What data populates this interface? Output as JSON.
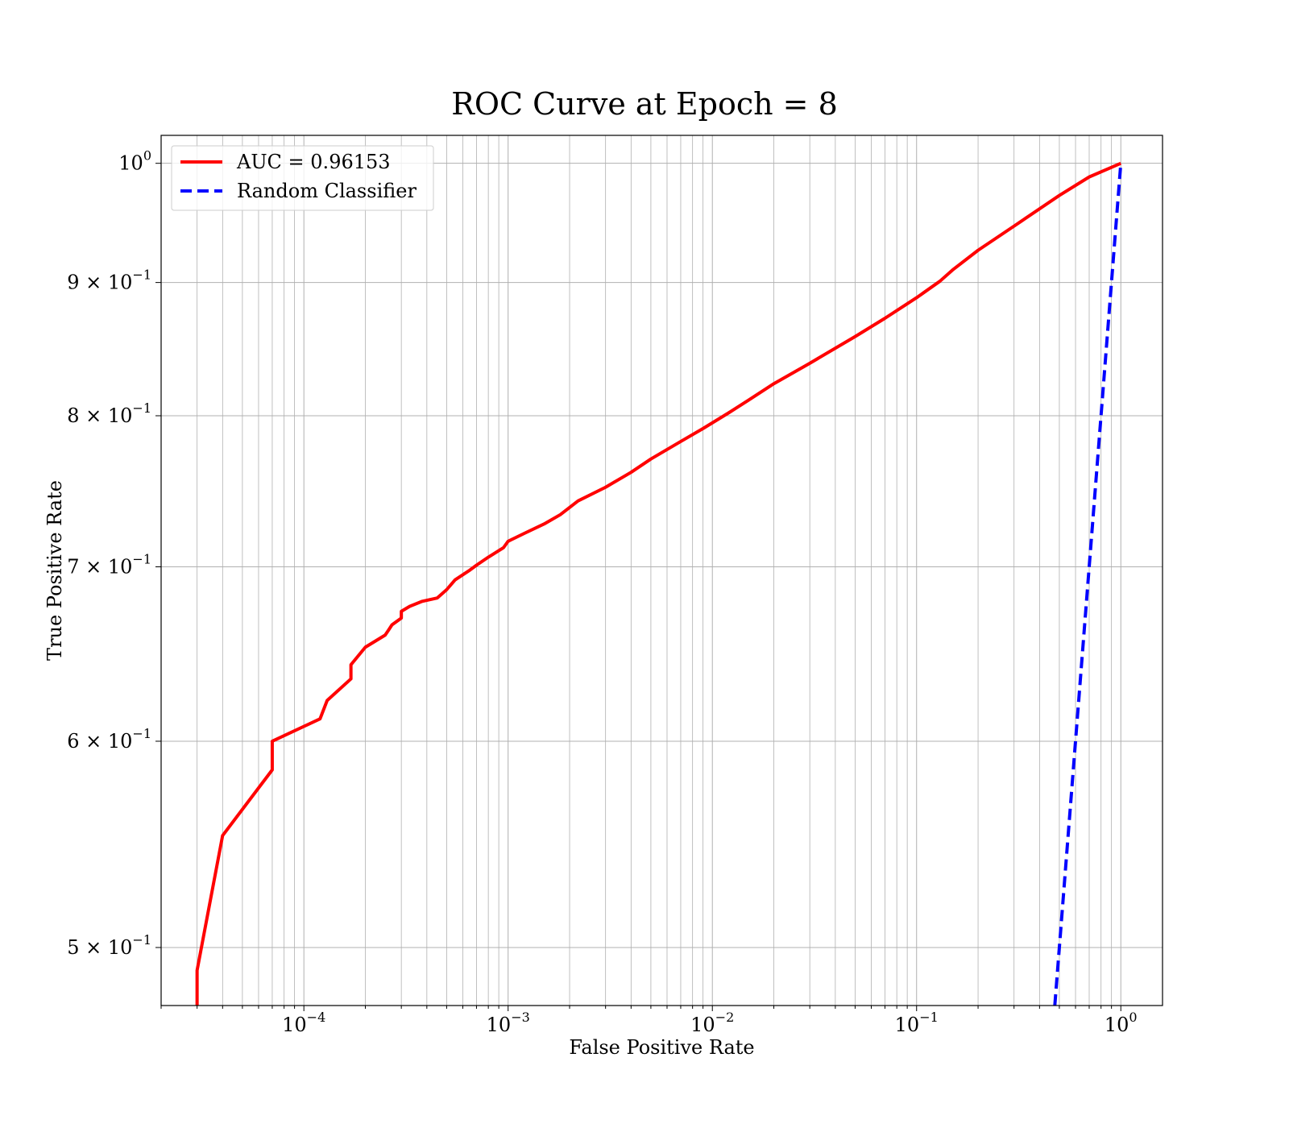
{
  "chart_data": {
    "type": "line",
    "title": "ROC Curve at Epoch = 8",
    "xlabel": "False Positive Rate",
    "ylabel": "True Positive Rate",
    "xscale": "log",
    "yscale": "log",
    "xlim": [
      2e-05,
      1.6
    ],
    "ylim": [
      0.475,
      1.025
    ],
    "grid": true,
    "grid_minor": true,
    "legend_position": "top-left",
    "x_ticks": [
      {
        "value": 0.0001,
        "base": "10",
        "exp": "−4"
      },
      {
        "value": 0.001,
        "base": "10",
        "exp": "−3"
      },
      {
        "value": 0.01,
        "base": "10",
        "exp": "−2"
      },
      {
        "value": 0.1,
        "base": "10",
        "exp": "−1"
      },
      {
        "value": 1,
        "base": "10",
        "exp": "0"
      }
    ],
    "y_ticks": [
      {
        "value": 1.0,
        "mant": "",
        "base": "10",
        "exp": "0"
      },
      {
        "value": 0.9,
        "mant": "9 × ",
        "base": "10",
        "exp": "−1"
      },
      {
        "value": 0.8,
        "mant": "8 × ",
        "base": "10",
        "exp": "−1"
      },
      {
        "value": 0.7,
        "mant": "7 × ",
        "base": "10",
        "exp": "−1"
      },
      {
        "value": 0.6,
        "mant": "6 × ",
        "base": "10",
        "exp": "−1"
      },
      {
        "value": 0.5,
        "mant": "5 × ",
        "base": "10",
        "exp": "−1"
      }
    ],
    "series": [
      {
        "name": "AUC = 0.96153",
        "color": "#ff0000",
        "style": "solid",
        "x": [
          3e-05,
          3e-05,
          4e-05,
          7e-05,
          7e-05,
          0.00012,
          0.00013,
          0.00017,
          0.00017,
          0.0002,
          0.00025,
          0.00026,
          0.00027,
          0.0003,
          0.0003,
          0.00033,
          0.00038,
          0.00045,
          0.0005,
          0.00055,
          0.00065,
          0.0007,
          0.0008,
          0.00095,
          0.001,
          0.0012,
          0.0015,
          0.0018,
          0.0022,
          0.003,
          0.004,
          0.005,
          0.007,
          0.009,
          0.012,
          0.015,
          0.02,
          0.03,
          0.05,
          0.07,
          0.1,
          0.13,
          0.15,
          0.2,
          0.3,
          0.5,
          0.7,
          1.0
        ],
        "y": [
          0.475,
          0.49,
          0.552,
          0.585,
          0.6,
          0.612,
          0.622,
          0.634,
          0.642,
          0.652,
          0.659,
          0.662,
          0.665,
          0.669,
          0.673,
          0.676,
          0.679,
          0.681,
          0.686,
          0.692,
          0.698,
          0.701,
          0.706,
          0.712,
          0.716,
          0.721,
          0.727,
          0.733,
          0.742,
          0.751,
          0.761,
          0.77,
          0.782,
          0.791,
          0.802,
          0.811,
          0.823,
          0.838,
          0.858,
          0.872,
          0.888,
          0.901,
          0.91,
          0.926,
          0.946,
          0.972,
          0.988,
          1.0
        ]
      },
      {
        "name": "Random Classifier",
        "color": "#0000ff",
        "style": "dashed",
        "x": [
          0.475,
          0.5,
          0.6,
          0.7,
          0.8,
          0.9,
          1.0
        ],
        "y": [
          0.475,
          0.5,
          0.6,
          0.7,
          0.8,
          0.9,
          1.0
        ]
      }
    ]
  }
}
